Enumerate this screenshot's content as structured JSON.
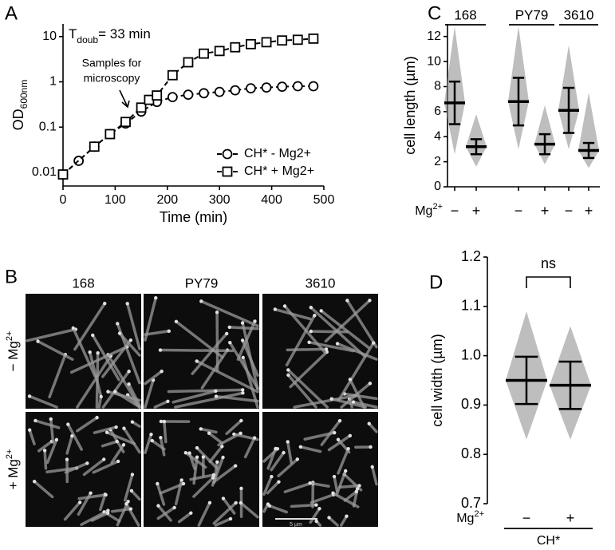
{
  "chart_data": [
    {
      "type": "line",
      "panel_label": "A",
      "y_log": true,
      "xlabel": "Time (min)",
      "ylabel": [
        "OD",
        "600nm"
      ],
      "annotations": {
        "doubling": [
          "T",
          "doub",
          "= 33 min"
        ],
        "samples": [
          "Samples for",
          "microscopy"
        ]
      },
      "xlim": [
        0,
        500
      ],
      "xticks": [
        0,
        100,
        200,
        300,
        400,
        500
      ],
      "ylim": [
        0.005,
        19
      ],
      "yticks": [
        0.01,
        0.1,
        1,
        10
      ],
      "legend": "lower right",
      "color": "#000000",
      "series": [
        {
          "name": "CH* - Mg2+",
          "marker": "circle",
          "x": [
            0,
            30,
            60,
            90,
            120,
            150,
            180,
            210,
            240,
            270,
            300,
            330,
            360,
            390,
            420,
            450,
            480
          ],
          "values": [
            0.009,
            0.018,
            0.037,
            0.07,
            0.12,
            0.22,
            0.36,
            0.46,
            0.52,
            0.56,
            0.6,
            0.65,
            0.72,
            0.75,
            0.78,
            0.8,
            0.8
          ]
        },
        {
          "name": "CH* + Mg2+",
          "marker": "square",
          "x": [
            0,
            60,
            90,
            120,
            150,
            165,
            180,
            210,
            240,
            270,
            300,
            330,
            360,
            390,
            420,
            450,
            480
          ],
          "values": [
            0.009,
            0.037,
            0.07,
            0.13,
            0.27,
            0.4,
            0.5,
            1.4,
            2.7,
            4.2,
            4.8,
            5.8,
            6.8,
            7.5,
            8.2,
            8.5,
            9
          ]
        }
      ]
    },
    {
      "type": "dot",
      "panel_label": "C",
      "ylabel": "cell length (µm)",
      "ylim": [
        0,
        13
      ],
      "yticks": [
        0,
        2,
        4,
        6,
        8,
        10,
        12
      ],
      "condition_label": [
        "Mg",
        "2+"
      ],
      "color": "#888888",
      "groups": [
        {
          "name": "168",
          "conditions": [
            {
              "label": "−",
              "mean": 6.7,
              "sd": 1.7,
              "range": [
                2.6,
                12.8
              ]
            },
            {
              "label": "+",
              "mean": 3.2,
              "sd": 0.6,
              "range": [
                1.6,
                5.8
              ]
            }
          ]
        },
        {
          "name": "PY79",
          "conditions": [
            {
              "label": "−",
              "mean": 6.8,
              "sd": 1.9,
              "range": [
                3,
                12.8
              ]
            },
            {
              "label": "+",
              "mean": 3.4,
              "sd": 0.8,
              "range": [
                1.8,
                6.5
              ]
            }
          ]
        },
        {
          "name": "3610",
          "conditions": [
            {
              "label": "−",
              "mean": 6.1,
              "sd": 1.8,
              "range": [
                3,
                11.3
              ]
            },
            {
              "label": "+",
              "mean": 2.9,
              "sd": 0.6,
              "range": [
                1.5,
                7.5
              ]
            }
          ]
        }
      ]
    },
    {
      "type": "dot",
      "panel_label": "D",
      "ylabel": "cell width (µm)",
      "ylim": [
        0.7,
        1.2
      ],
      "yticks": [
        0.7,
        0.8,
        0.9,
        {
          "value": 1,
          "label": "1.0"
        },
        1.1,
        1.2
      ],
      "condition_label": [
        "Mg",
        "2+"
      ],
      "significance": "ns",
      "color": "#888888",
      "groups": [
        {
          "name": "CH*",
          "conditions": [
            {
              "label": "−",
              "mean": 0.95,
              "sd": 0.048,
              "range": [
                0.83,
                1.09
              ]
            },
            {
              "label": "+",
              "mean": 0.94,
              "sd": 0.048,
              "range": [
                0.83,
                1.06
              ]
            }
          ]
        }
      ]
    }
  ],
  "micrographs": {
    "panel_label": "B",
    "columns": [
      "168",
      "PY79",
      "3610"
    ],
    "rows": [
      [
        "− Mg",
        "2+"
      ],
      [
        "+ Mg",
        "2+"
      ]
    ],
    "scale_bar": "5 µm"
  }
}
